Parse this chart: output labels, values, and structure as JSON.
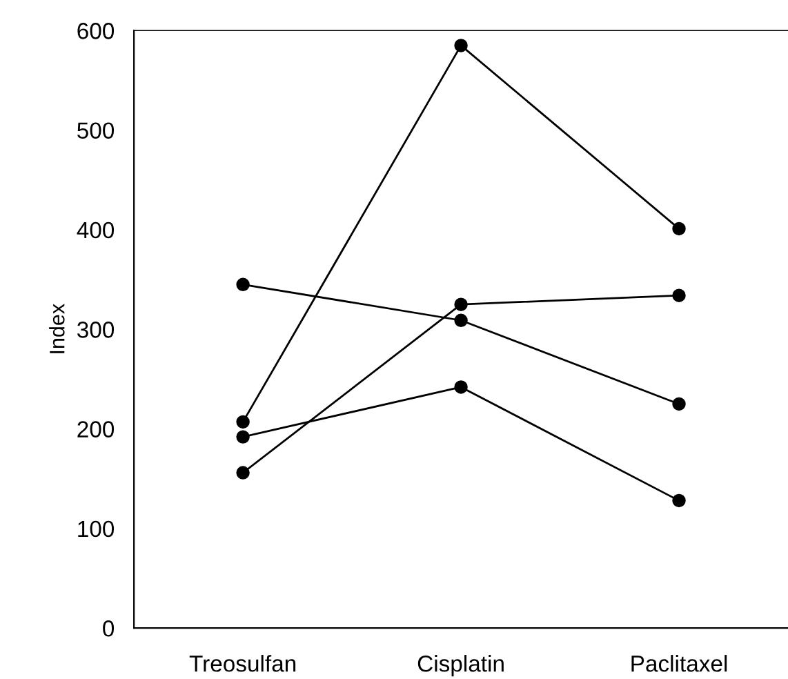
{
  "chart_data": {
    "type": "line",
    "ylabel": "Index",
    "categories": [
      "Treosulfan",
      "Cisplatin",
      "Paclitaxel"
    ],
    "series": [
      {
        "color": "#000000",
        "values": [
          207,
          585,
          401
        ]
      },
      {
        "color": "#000000",
        "values": [
          345,
          309,
          225
        ]
      },
      {
        "color": "#000000",
        "values": [
          156,
          325,
          334
        ]
      },
      {
        "color": "#000000",
        "values": [
          192,
          242,
          128
        ]
      }
    ],
    "ylim": [
      0,
      600
    ],
    "yticks": [
      0,
      100,
      200,
      300,
      400,
      500,
      600
    ],
    "marker": "circle",
    "line_style": "solid",
    "grid": false,
    "legend": false
  }
}
